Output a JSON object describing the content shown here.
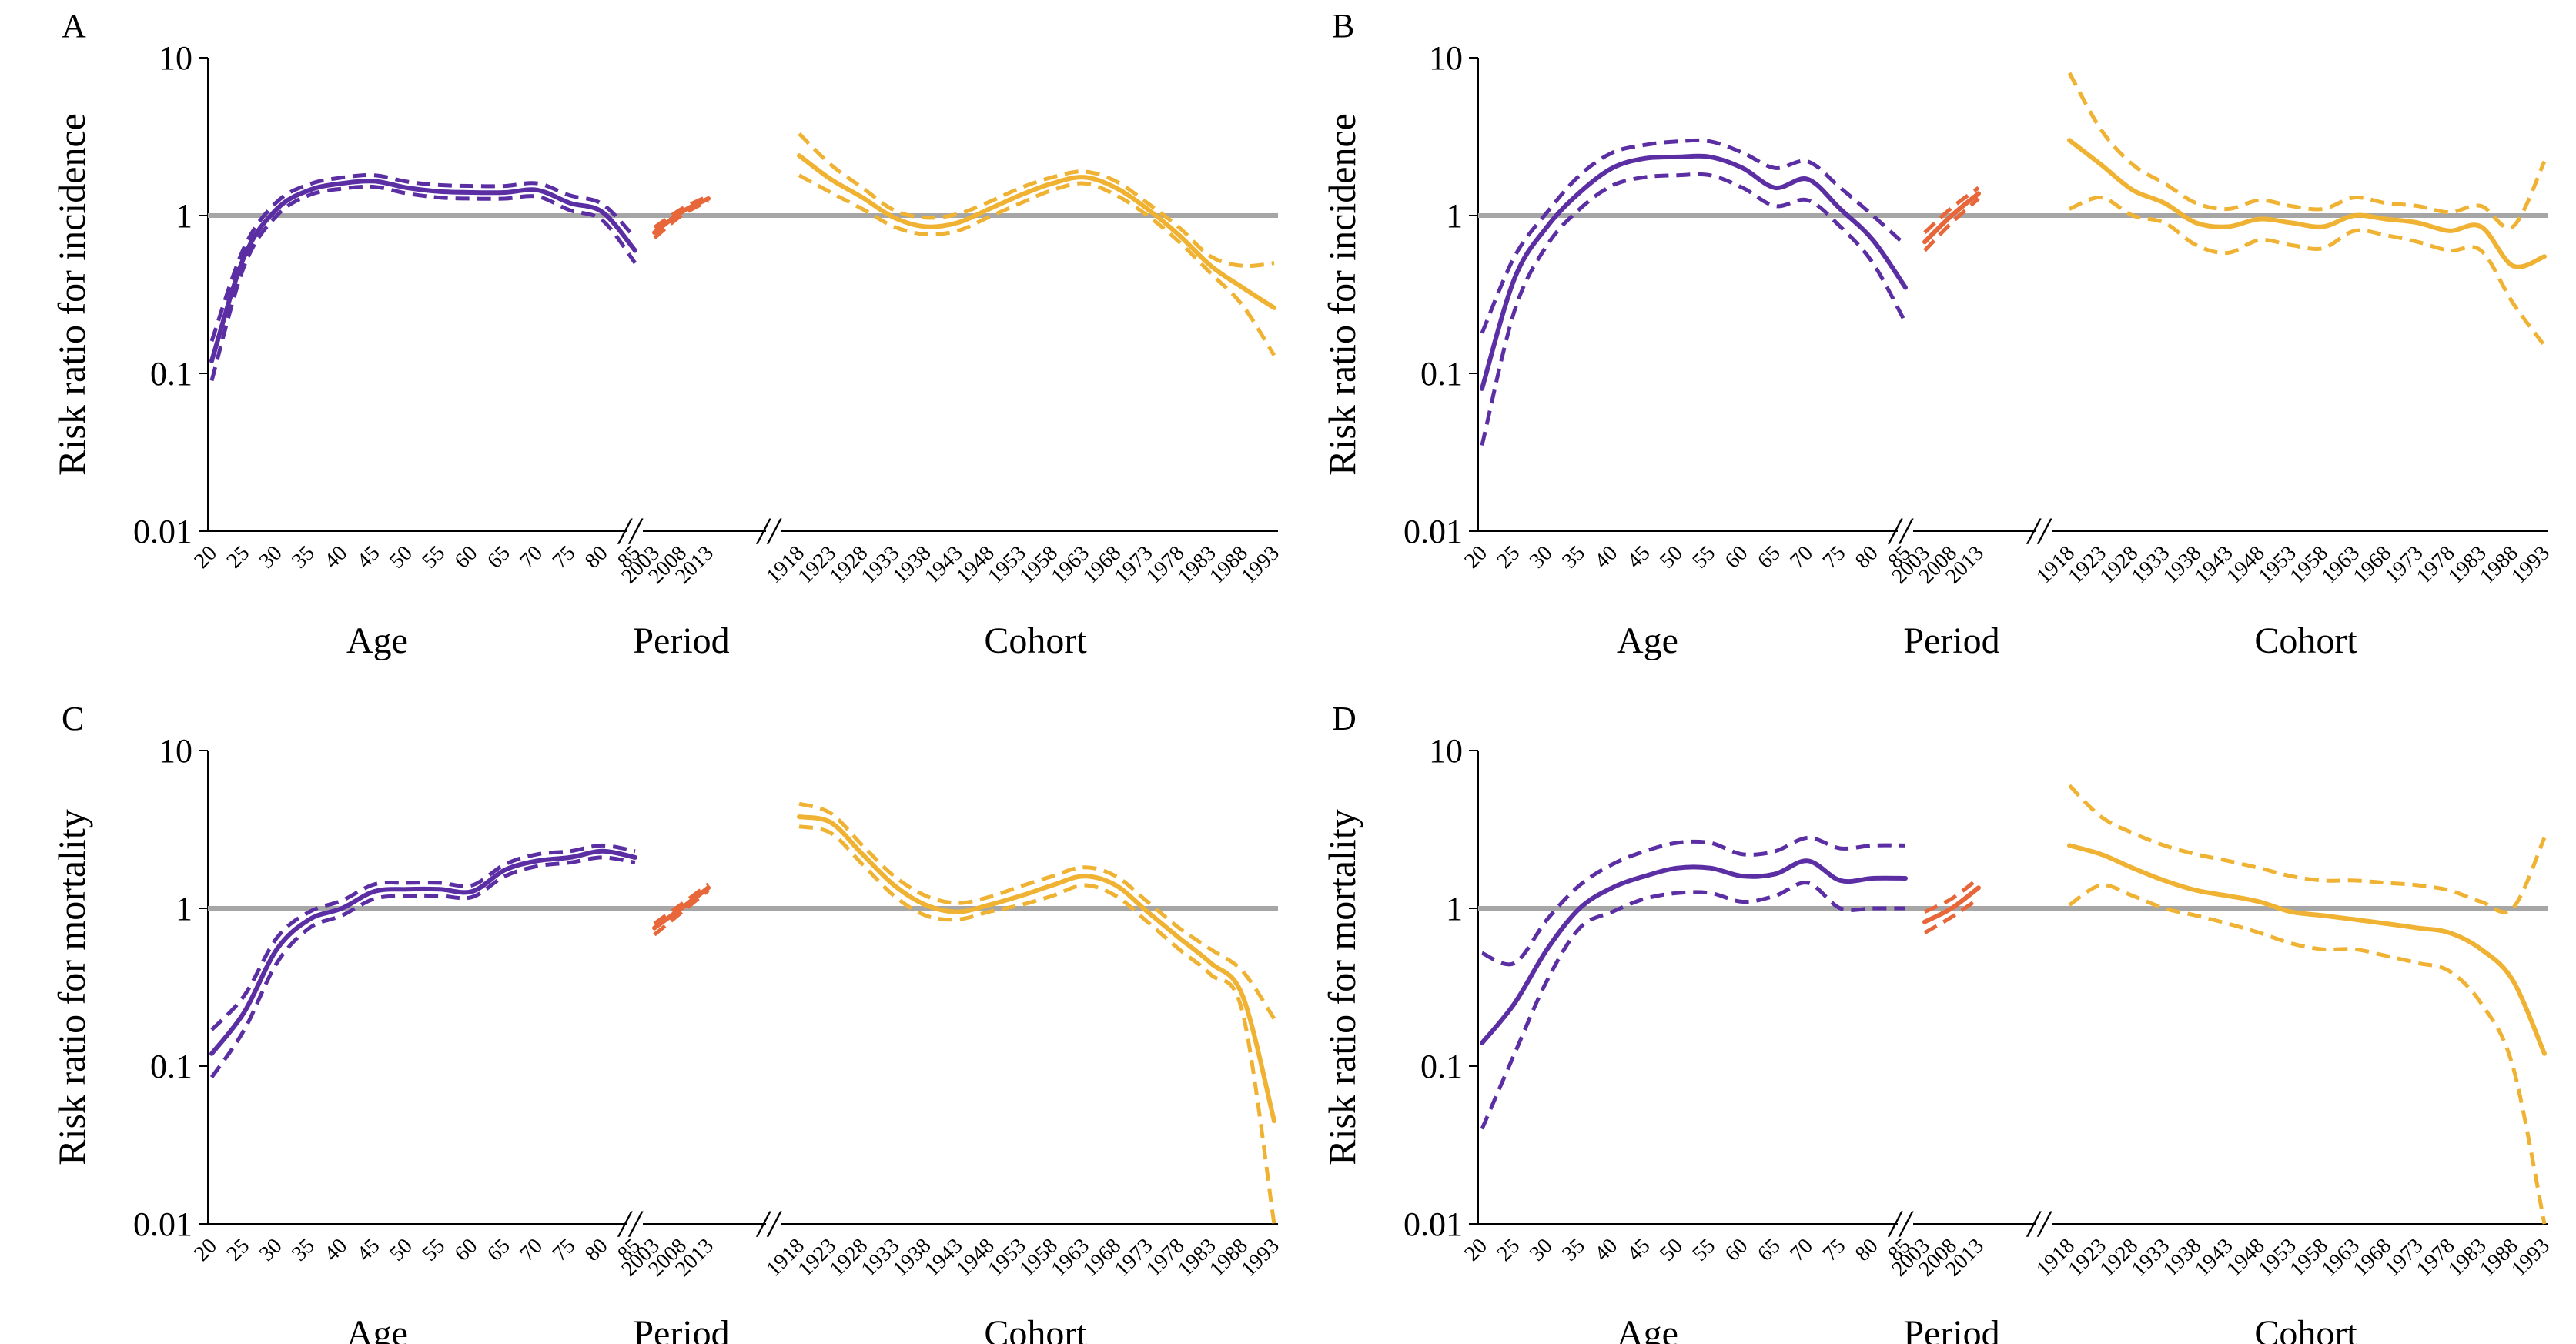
{
  "colors": {
    "age": "#5b2fa3",
    "period": "#e8673a",
    "cohort": "#f0b233",
    "reference": "#a6a6a6",
    "axis": "#000000"
  },
  "shared": {
    "yticks": [
      "10",
      "1",
      "0.1",
      "0.01"
    ],
    "yscale": "log",
    "ylim": [
      0.01,
      10
    ],
    "reference_value": 1,
    "age_ticks": [
      "20",
      "25",
      "30",
      "35",
      "40",
      "45",
      "50",
      "55",
      "60",
      "65",
      "70",
      "75",
      "80",
      "85"
    ],
    "period_ticks": [
      "2003",
      "2008",
      "2013"
    ],
    "cohort_ticks": [
      "1918",
      "1923",
      "1928",
      "1933",
      "1938",
      "1943",
      "1948",
      "1953",
      "1958",
      "1963",
      "1968",
      "1973",
      "1978",
      "1983",
      "1988",
      "1993"
    ],
    "group_labels": {
      "age": "Age",
      "period": "Period",
      "cohort": "Cohort"
    },
    "axis_break": "//"
  },
  "chart_data": [
    {
      "panel": "A",
      "type": "line",
      "ylabel": "Risk ratio for incidence",
      "age": {
        "x": [
          20,
          25,
          30,
          35,
          40,
          45,
          50,
          55,
          60,
          65,
          70,
          75,
          80,
          85
        ],
        "est": [
          0.12,
          0.55,
          1.1,
          1.45,
          1.6,
          1.65,
          1.5,
          1.42,
          1.4,
          1.4,
          1.45,
          1.2,
          1.05,
          0.6
        ],
        "lower": [
          0.09,
          0.48,
          1.0,
          1.35,
          1.48,
          1.52,
          1.38,
          1.3,
          1.28,
          1.28,
          1.32,
          1.08,
          0.93,
          0.5
        ],
        "upper": [
          0.16,
          0.63,
          1.22,
          1.58,
          1.74,
          1.8,
          1.64,
          1.56,
          1.54,
          1.54,
          1.6,
          1.34,
          1.18,
          0.72
        ]
      },
      "period": {
        "x": [
          2003,
          2008,
          2013
        ],
        "est": [
          0.78,
          1.05,
          1.28
        ],
        "lower": [
          0.72,
          1.0,
          1.24
        ],
        "upper": [
          0.84,
          1.1,
          1.33
        ]
      },
      "cohort": {
        "x": [
          1918,
          1923,
          1928,
          1933,
          1938,
          1943,
          1948,
          1953,
          1958,
          1963,
          1968,
          1973,
          1978,
          1983,
          1988,
          1993
        ],
        "est": [
          2.4,
          1.7,
          1.3,
          0.97,
          0.85,
          0.9,
          1.1,
          1.35,
          1.6,
          1.75,
          1.5,
          1.1,
          0.75,
          0.48,
          0.35,
          0.26
        ],
        "lower": [
          1.8,
          1.4,
          1.1,
          0.85,
          0.76,
          0.8,
          0.98,
          1.2,
          1.45,
          1.6,
          1.35,
          1.0,
          0.68,
          0.43,
          0.27,
          0.13
        ],
        "upper": [
          3.3,
          2.1,
          1.5,
          1.08,
          0.97,
          1.02,
          1.22,
          1.5,
          1.75,
          1.9,
          1.65,
          1.2,
          0.84,
          0.55,
          0.48,
          0.5
        ]
      }
    },
    {
      "panel": "B",
      "type": "line",
      "ylabel": "Risk ratio for incidence",
      "age": {
        "x": [
          20,
          25,
          30,
          35,
          40,
          45,
          50,
          55,
          60,
          65,
          70,
          75,
          80,
          85
        ],
        "est": [
          0.08,
          0.4,
          0.85,
          1.4,
          2.0,
          2.3,
          2.35,
          2.35,
          2.0,
          1.5,
          1.7,
          1.1,
          0.7,
          0.35
        ],
        "lower": [
          0.035,
          0.25,
          0.65,
          1.1,
          1.55,
          1.75,
          1.8,
          1.8,
          1.5,
          1.15,
          1.25,
          0.85,
          0.5,
          0.21
        ],
        "upper": [
          0.18,
          0.55,
          1.05,
          1.8,
          2.5,
          2.8,
          2.95,
          2.95,
          2.5,
          2.0,
          2.2,
          1.5,
          1.0,
          0.65
        ]
      },
      "period": {
        "x": [
          2003,
          2008,
          2013
        ],
        "est": [
          0.68,
          1.0,
          1.38
        ],
        "lower": [
          0.6,
          0.9,
          1.28
        ],
        "upper": [
          0.78,
          1.12,
          1.5
        ]
      },
      "cohort": {
        "x": [
          1918,
          1923,
          1928,
          1933,
          1938,
          1943,
          1948,
          1953,
          1958,
          1963,
          1968,
          1973,
          1978,
          1983,
          1988,
          1993
        ],
        "est": [
          3.0,
          2.1,
          1.45,
          1.2,
          0.9,
          0.85,
          0.95,
          0.9,
          0.85,
          1.0,
          0.95,
          0.9,
          0.8,
          0.85,
          0.48,
          0.55
        ],
        "lower": [
          1.1,
          1.3,
          1.0,
          0.9,
          0.65,
          0.58,
          0.7,
          0.65,
          0.62,
          0.8,
          0.75,
          0.68,
          0.6,
          0.6,
          0.28,
          0.15
        ],
        "upper": [
          8.0,
          3.5,
          2.1,
          1.6,
          1.2,
          1.1,
          1.25,
          1.15,
          1.1,
          1.3,
          1.2,
          1.15,
          1.05,
          1.15,
          0.85,
          2.2
        ]
      }
    },
    {
      "panel": "C",
      "type": "line",
      "ylabel": "Risk ratio for mortality",
      "age": {
        "x": [
          20,
          25,
          30,
          35,
          40,
          45,
          50,
          55,
          60,
          65,
          70,
          75,
          80,
          85
        ],
        "est": [
          0.12,
          0.22,
          0.55,
          0.85,
          1.0,
          1.28,
          1.32,
          1.32,
          1.28,
          1.75,
          2.0,
          2.1,
          2.3,
          2.1
        ],
        "lower": [
          0.085,
          0.17,
          0.45,
          0.75,
          0.9,
          1.15,
          1.2,
          1.2,
          1.18,
          1.6,
          1.85,
          1.95,
          2.1,
          1.95
        ],
        "upper": [
          0.17,
          0.28,
          0.65,
          0.95,
          1.12,
          1.42,
          1.45,
          1.45,
          1.4,
          1.9,
          2.2,
          2.3,
          2.5,
          2.3
        ]
      },
      "period": {
        "x": [
          2003,
          2008,
          2013
        ],
        "est": [
          0.75,
          1.0,
          1.35
        ],
        "lower": [
          0.68,
          0.94,
          1.3
        ],
        "upper": [
          0.8,
          1.06,
          1.42
        ]
      },
      "cohort": {
        "x": [
          1918,
          1923,
          1928,
          1933,
          1938,
          1943,
          1948,
          1953,
          1958,
          1963,
          1968,
          1973,
          1978,
          1983,
          1988,
          1993
        ],
        "est": [
          3.8,
          3.5,
          2.2,
          1.4,
          1.05,
          0.95,
          1.05,
          1.2,
          1.4,
          1.6,
          1.4,
          0.95,
          0.65,
          0.45,
          0.28,
          0.045
        ],
        "lower": [
          3.3,
          3.0,
          1.9,
          1.2,
          0.9,
          0.85,
          0.95,
          1.05,
          1.2,
          1.4,
          1.2,
          0.82,
          0.55,
          0.38,
          0.22,
          0.01
        ],
        "upper": [
          4.6,
          4.0,
          2.5,
          1.6,
          1.2,
          1.08,
          1.18,
          1.38,
          1.6,
          1.82,
          1.6,
          1.1,
          0.75,
          0.55,
          0.4,
          0.2
        ]
      }
    },
    {
      "panel": "D",
      "type": "line",
      "ylabel": "Risk ratio for mortality",
      "age": {
        "x": [
          20,
          25,
          30,
          35,
          40,
          45,
          50,
          55,
          60,
          65,
          70,
          75,
          80,
          85
        ],
        "est": [
          0.14,
          0.25,
          0.55,
          1.0,
          1.35,
          1.6,
          1.8,
          1.8,
          1.6,
          1.65,
          2.0,
          1.5,
          1.55,
          1.55
        ],
        "lower": [
          0.04,
          0.12,
          0.35,
          0.75,
          0.95,
          1.15,
          1.25,
          1.25,
          1.1,
          1.2,
          1.45,
          1.0,
          1.0,
          1.0
        ],
        "upper": [
          0.52,
          0.45,
          0.85,
          1.4,
          1.9,
          2.3,
          2.6,
          2.6,
          2.2,
          2.3,
          2.8,
          2.4,
          2.5,
          2.5
        ]
      },
      "period": {
        "x": [
          2003,
          2008,
          2013
        ],
        "est": [
          0.82,
          1.0,
          1.35
        ],
        "lower": [
          0.7,
          0.88,
          1.15
        ],
        "upper": [
          0.95,
          1.15,
          1.55
        ]
      },
      "cohort": {
        "x": [
          1918,
          1923,
          1928,
          1933,
          1938,
          1943,
          1948,
          1953,
          1958,
          1963,
          1968,
          1973,
          1978,
          1983,
          1988,
          1993
        ],
        "est": [
          2.5,
          2.2,
          1.8,
          1.5,
          1.3,
          1.2,
          1.1,
          0.95,
          0.9,
          0.85,
          0.8,
          0.75,
          0.7,
          0.55,
          0.35,
          0.12
        ],
        "lower": [
          1.05,
          1.4,
          1.2,
          1.0,
          0.9,
          0.8,
          0.7,
          0.6,
          0.55,
          0.55,
          0.5,
          0.45,
          0.4,
          0.25,
          0.1,
          0.01
        ],
        "upper": [
          6.0,
          3.8,
          3.0,
          2.5,
          2.2,
          2.0,
          1.8,
          1.6,
          1.5,
          1.5,
          1.45,
          1.4,
          1.3,
          1.1,
          1.0,
          2.8
        ]
      }
    }
  ]
}
